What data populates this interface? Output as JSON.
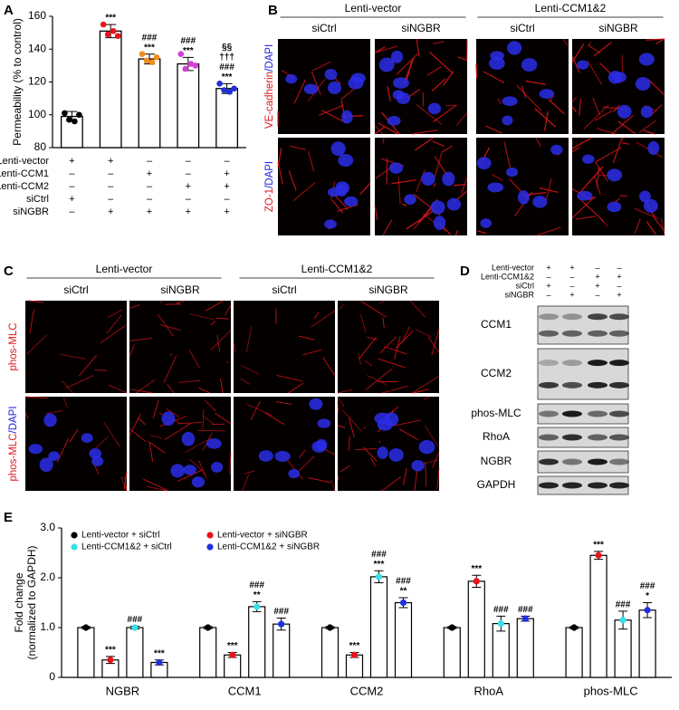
{
  "chart_data": [
    {
      "type": "bar",
      "panel": "A",
      "ylabel": "Permeability (% to control)",
      "values": [
        99,
        151,
        134,
        131,
        116
      ],
      "errors": [
        3,
        4,
        3,
        4,
        3
      ],
      "points": [
        [
          101,
          97,
          96,
          100
        ],
        [
          155,
          149,
          151,
          148
        ],
        [
          137,
          133,
          132,
          135
        ],
        [
          137,
          128,
          131,
          130
        ],
        [
          119,
          115,
          114,
          116
        ]
      ],
      "colors": [
        "#000000",
        "#e8141b",
        "#f28c1c",
        "#d63fd6",
        "#2130d6"
      ],
      "annotations": [
        null,
        [
          "***"
        ],
        [
          "###",
          "***"
        ],
        [
          "###",
          "***"
        ],
        [
          "§§",
          "†††",
          "###",
          "***"
        ]
      ],
      "ylim": [
        80,
        160
      ],
      "yticks": [
        80,
        100,
        120,
        140,
        160
      ],
      "conditions": [
        {
          "label": "Lenti-vector",
          "marks": [
            "+",
            "+",
            "–",
            "–",
            "–"
          ]
        },
        {
          "label": "Lenti-CCM1",
          "marks": [
            "–",
            "–",
            "+",
            "–",
            "+"
          ]
        },
        {
          "label": "Lenti-CCM2",
          "marks": [
            "–",
            "–",
            "–",
            "+",
            "+"
          ]
        },
        {
          "label": "siCtrl",
          "marks": [
            "+",
            "–",
            "–",
            "–",
            "–"
          ]
        },
        {
          "label": "siNGBR",
          "marks": [
            "–",
            "+",
            "+",
            "+",
            "+"
          ]
        }
      ]
    },
    {
      "type": "grouped_bar",
      "panel": "E",
      "ylabel": [
        "Fold change",
        "(normalized to GAPDH)"
      ],
      "categories": [
        "NGBR",
        "CCM1",
        "CCM2",
        "RhoA",
        "phos-MLC"
      ],
      "ylim": [
        0,
        3
      ],
      "yticks": [
        0,
        {
          "value": 1,
          "label": "1.0"
        },
        {
          "value": 2,
          "label": "2.0"
        },
        {
          "value": 3,
          "label": "3.0"
        }
      ],
      "series": [
        {
          "name": "Lenti-vector + siCtrl",
          "color": "#000000",
          "values": [
            1,
            1,
            1,
            1,
            1
          ],
          "errors": [
            0.02,
            0.02,
            0.02,
            0.02,
            0.02
          ],
          "annotations": [
            null,
            null,
            null,
            null,
            null
          ]
        },
        {
          "name": "Lenti-vector + siNGBR",
          "color": "#e8141b",
          "values": [
            0.35,
            0.45,
            0.45,
            1.93,
            2.45
          ],
          "errors": [
            0.07,
            0.05,
            0.05,
            0.12,
            0.08
          ],
          "annotations": [
            [
              "***"
            ],
            [
              "***"
            ],
            [
              "***"
            ],
            [
              "***"
            ],
            [
              "***"
            ]
          ]
        },
        {
          "name": "Lenti-CCM1&2 + siCtrl",
          "color": "#35e0e6",
          "values": [
            1.0,
            1.42,
            2.02,
            1.08,
            1.15
          ],
          "errors": [
            0.03,
            0.1,
            0.12,
            0.15,
            0.18
          ],
          "annotations": [
            [
              "###"
            ],
            [
              "###",
              "**"
            ],
            [
              "###",
              "***"
            ],
            [
              "###"
            ],
            [
              "###"
            ]
          ]
        },
        {
          "name": "Lenti-CCM1&2 + siNGBR",
          "color": "#1f2fe0",
          "values": [
            0.3,
            1.07,
            1.5,
            1.18,
            1.35
          ],
          "errors": [
            0.05,
            0.12,
            0.1,
            0.05,
            0.15
          ],
          "annotations": [
            [
              "***"
            ],
            [
              "###"
            ],
            [
              "###",
              "**"
            ],
            [
              "###"
            ],
            [
              "###",
              "*"
            ]
          ]
        }
      ]
    }
  ],
  "panel_b": {
    "panel": "B",
    "groups": [
      "Lenti-vector",
      "Lenti-CCM1&2"
    ],
    "columns": [
      "siCtrl",
      "siNGBR",
      "siCtrl",
      "siNGBR"
    ],
    "row_labels": [
      [
        "VE-cadherin",
        "/DAPI"
      ],
      [
        "ZO-1",
        "/DAPI"
      ]
    ]
  },
  "panel_c": {
    "panel": "C",
    "groups": [
      "Lenti-vector",
      "Lenti-CCM1&2"
    ],
    "columns": [
      "siCtrl",
      "siNGBR",
      "siCtrl",
      "siNGBR"
    ],
    "row_labels": [
      [
        "phos-MLC"
      ],
      [
        "phos-MLC",
        "/DAPI"
      ]
    ]
  },
  "panel_d": {
    "panel": "D",
    "conditions": [
      {
        "label": "Lenti-vector",
        "marks": [
          "+",
          "+",
          "–",
          "–"
        ]
      },
      {
        "label": "Lenti-CCM1&2",
        "marks": [
          "–",
          "–",
          "+",
          "+"
        ]
      },
      {
        "label": "siCtrl",
        "marks": [
          "+",
          "–",
          "+",
          "–"
        ]
      },
      {
        "label": "siNGBR",
        "marks": [
          "–",
          "+",
          "–",
          "+"
        ]
      }
    ],
    "bands": [
      "CCM1",
      "CCM2",
      "phos-MLC",
      "RhoA",
      "NGBR",
      "GAPDH"
    ]
  }
}
